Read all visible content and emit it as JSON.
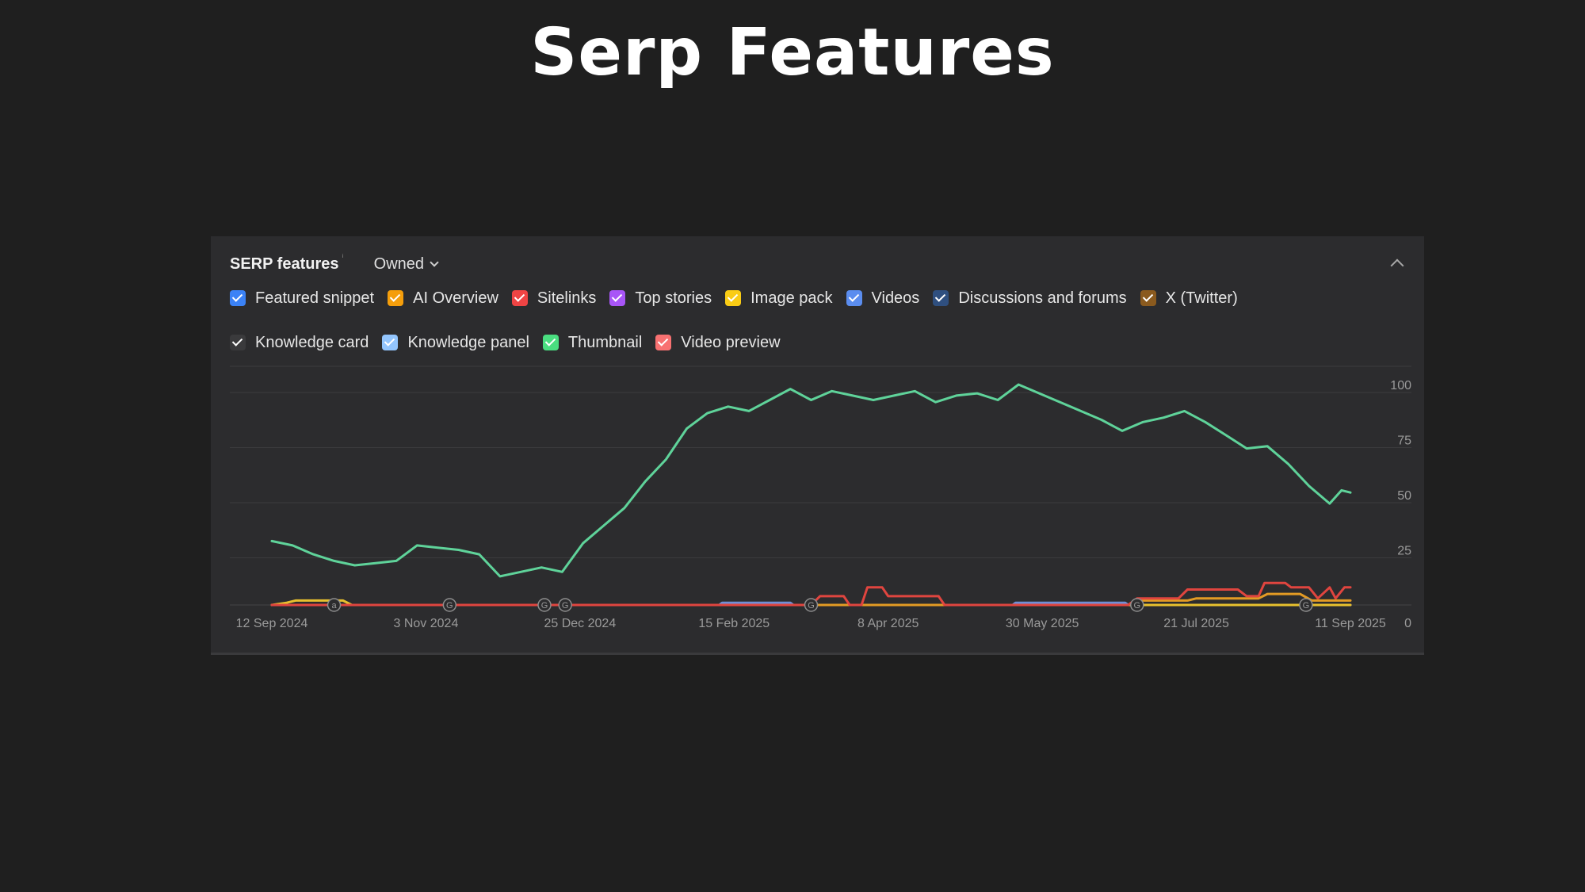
{
  "page": {
    "title": "Serp Features"
  },
  "panel": {
    "title": "SERP features",
    "info_icon": "info-icon",
    "filter_label": "Owned",
    "collapse_icon": "chevron-up-icon"
  },
  "legend": [
    {
      "label": "Featured snippet",
      "color": "#3b82f6"
    },
    {
      "label": "AI Overview",
      "color": "#f59e0b"
    },
    {
      "label": "Sitelinks",
      "color": "#ef4444"
    },
    {
      "label": "Top stories",
      "color": "#a855f7"
    },
    {
      "label": "Image pack",
      "color": "#facc15"
    },
    {
      "label": "Videos",
      "color": "#5b8def"
    },
    {
      "label": "Discussions and forums",
      "color": "#2f4f7f"
    },
    {
      "label": "X (Twitter)",
      "color": "#8a5a1e"
    },
    {
      "label": "Knowledge card",
      "color": "#3a3a3c"
    },
    {
      "label": "Knowledge panel",
      "color": "#93c5fd"
    },
    {
      "label": "Thumbnail",
      "color": "#4ade80"
    },
    {
      "label": "Video preview",
      "color": "#f87171"
    }
  ],
  "chart_data": {
    "type": "line",
    "y_axis_position": "right",
    "ylim": [
      0,
      100
    ],
    "y_ticks": [
      0,
      25,
      50,
      75,
      100
    ],
    "xlim": [
      "2024-09-12",
      "2025-09-11"
    ],
    "x_tick_labels": [
      "12 Sep 2024",
      "3 Nov 2024",
      "25 Dec 2024",
      "15 Feb 2025",
      "8 Apr 2025",
      "30 May 2025",
      "21 Jul 2025",
      "11 Sep 2025"
    ],
    "grid": true,
    "annotation_markers": [
      {
        "date": "2024-10-03",
        "label": "a"
      },
      {
        "date": "2024-11-11",
        "label": "G"
      },
      {
        "date": "2024-12-13",
        "label": "G"
      },
      {
        "date": "2024-12-20",
        "label": "G"
      },
      {
        "date": "2025-03-13",
        "label": "G"
      },
      {
        "date": "2025-07-01",
        "label": "G"
      },
      {
        "date": "2025-08-27",
        "label": "G"
      }
    ],
    "series": [
      {
        "name": "Thumbnail",
        "color": "#5fd39a",
        "points": [
          [
            "2024-09-12",
            29
          ],
          [
            "2024-09-19",
            27
          ],
          [
            "2024-09-26",
            23
          ],
          [
            "2024-10-03",
            20
          ],
          [
            "2024-10-10",
            18
          ],
          [
            "2024-10-17",
            19
          ],
          [
            "2024-10-24",
            20
          ],
          [
            "2024-10-31",
            27
          ],
          [
            "2024-11-07",
            26
          ],
          [
            "2024-11-14",
            25
          ],
          [
            "2024-11-21",
            23
          ],
          [
            "2024-11-28",
            13
          ],
          [
            "2024-12-05",
            15
          ],
          [
            "2024-12-12",
            17
          ],
          [
            "2024-12-19",
            15
          ],
          [
            "2024-12-26",
            28
          ],
          [
            "2025-01-02",
            36
          ],
          [
            "2025-01-09",
            44
          ],
          [
            "2025-01-16",
            56
          ],
          [
            "2025-01-23",
            66
          ],
          [
            "2025-01-30",
            80
          ],
          [
            "2025-02-06",
            87
          ],
          [
            "2025-02-13",
            90
          ],
          [
            "2025-02-20",
            88
          ],
          [
            "2025-02-27",
            93
          ],
          [
            "2025-03-06",
            98
          ],
          [
            "2025-03-13",
            93
          ],
          [
            "2025-03-20",
            97
          ],
          [
            "2025-03-27",
            95
          ],
          [
            "2025-04-03",
            93
          ],
          [
            "2025-04-10",
            95
          ],
          [
            "2025-04-17",
            97
          ],
          [
            "2025-04-24",
            92
          ],
          [
            "2025-05-01",
            95
          ],
          [
            "2025-05-08",
            96
          ],
          [
            "2025-05-15",
            93
          ],
          [
            "2025-05-22",
            100
          ],
          [
            "2025-05-29",
            96
          ],
          [
            "2025-06-05",
            92
          ],
          [
            "2025-06-12",
            88
          ],
          [
            "2025-06-19",
            84
          ],
          [
            "2025-06-26",
            79
          ],
          [
            "2025-07-03",
            83
          ],
          [
            "2025-07-10",
            85
          ],
          [
            "2025-07-17",
            88
          ],
          [
            "2025-07-24",
            83
          ],
          [
            "2025-07-31",
            77
          ],
          [
            "2025-08-07",
            71
          ],
          [
            "2025-08-14",
            72
          ],
          [
            "2025-08-21",
            64
          ],
          [
            "2025-08-28",
            54
          ],
          [
            "2025-09-04",
            46
          ],
          [
            "2025-09-08",
            52
          ],
          [
            "2025-09-11",
            51
          ]
        ]
      },
      {
        "name": "Sitelinks",
        "color": "#e0453f",
        "points": [
          [
            "2024-09-12",
            0
          ],
          [
            "2025-03-13",
            0
          ],
          [
            "2025-03-16",
            4
          ],
          [
            "2025-03-24",
            4
          ],
          [
            "2025-03-26",
            0
          ],
          [
            "2025-03-30",
            0
          ],
          [
            "2025-04-01",
            8
          ],
          [
            "2025-04-06",
            8
          ],
          [
            "2025-04-08",
            4
          ],
          [
            "2025-04-25",
            4
          ],
          [
            "2025-04-27",
            0
          ],
          [
            "2025-06-28",
            0
          ],
          [
            "2025-07-01",
            3
          ],
          [
            "2025-07-15",
            3
          ],
          [
            "2025-07-18",
            7
          ],
          [
            "2025-08-04",
            7
          ],
          [
            "2025-08-07",
            4
          ],
          [
            "2025-08-11",
            4
          ],
          [
            "2025-08-13",
            10
          ],
          [
            "2025-08-20",
            10
          ],
          [
            "2025-08-22",
            8
          ],
          [
            "2025-08-28",
            8
          ],
          [
            "2025-08-31",
            3
          ],
          [
            "2025-09-04",
            8
          ],
          [
            "2025-09-06",
            3
          ],
          [
            "2025-09-09",
            8
          ],
          [
            "2025-09-11",
            8
          ]
        ]
      },
      {
        "name": "AI Overview",
        "color": "#e39b24",
        "points": [
          [
            "2024-09-12",
            0
          ],
          [
            "2025-06-28",
            0
          ],
          [
            "2025-07-01",
            2
          ],
          [
            "2025-07-18",
            2
          ],
          [
            "2025-07-21",
            3
          ],
          [
            "2025-08-11",
            3
          ],
          [
            "2025-08-14",
            5
          ],
          [
            "2025-08-25",
            5
          ],
          [
            "2025-08-29",
            2
          ],
          [
            "2025-09-11",
            2
          ]
        ]
      },
      {
        "name": "Image pack",
        "color": "#e8c12e",
        "points": [
          [
            "2024-09-12",
            0
          ],
          [
            "2024-09-17",
            1
          ],
          [
            "2024-09-20",
            2
          ],
          [
            "2024-10-06",
            2
          ],
          [
            "2024-10-09",
            0
          ],
          [
            "2025-09-11",
            0
          ]
        ]
      },
      {
        "name": "Videos",
        "color": "#6f8fd6",
        "points": [
          [
            "2024-09-12",
            0
          ],
          [
            "2025-02-10",
            0
          ],
          [
            "2025-02-11",
            1
          ],
          [
            "2025-03-06",
            1
          ],
          [
            "2025-03-07",
            0
          ],
          [
            "2025-05-20",
            0
          ],
          [
            "2025-05-21",
            1
          ],
          [
            "2025-06-27",
            1
          ],
          [
            "2025-06-28",
            0
          ],
          [
            "2025-09-11",
            0
          ]
        ]
      },
      {
        "name": "Video preview",
        "color": "#ef8a8a",
        "points": [
          [
            "2024-09-12",
            0
          ],
          [
            "2025-09-11",
            0
          ]
        ]
      }
    ]
  }
}
